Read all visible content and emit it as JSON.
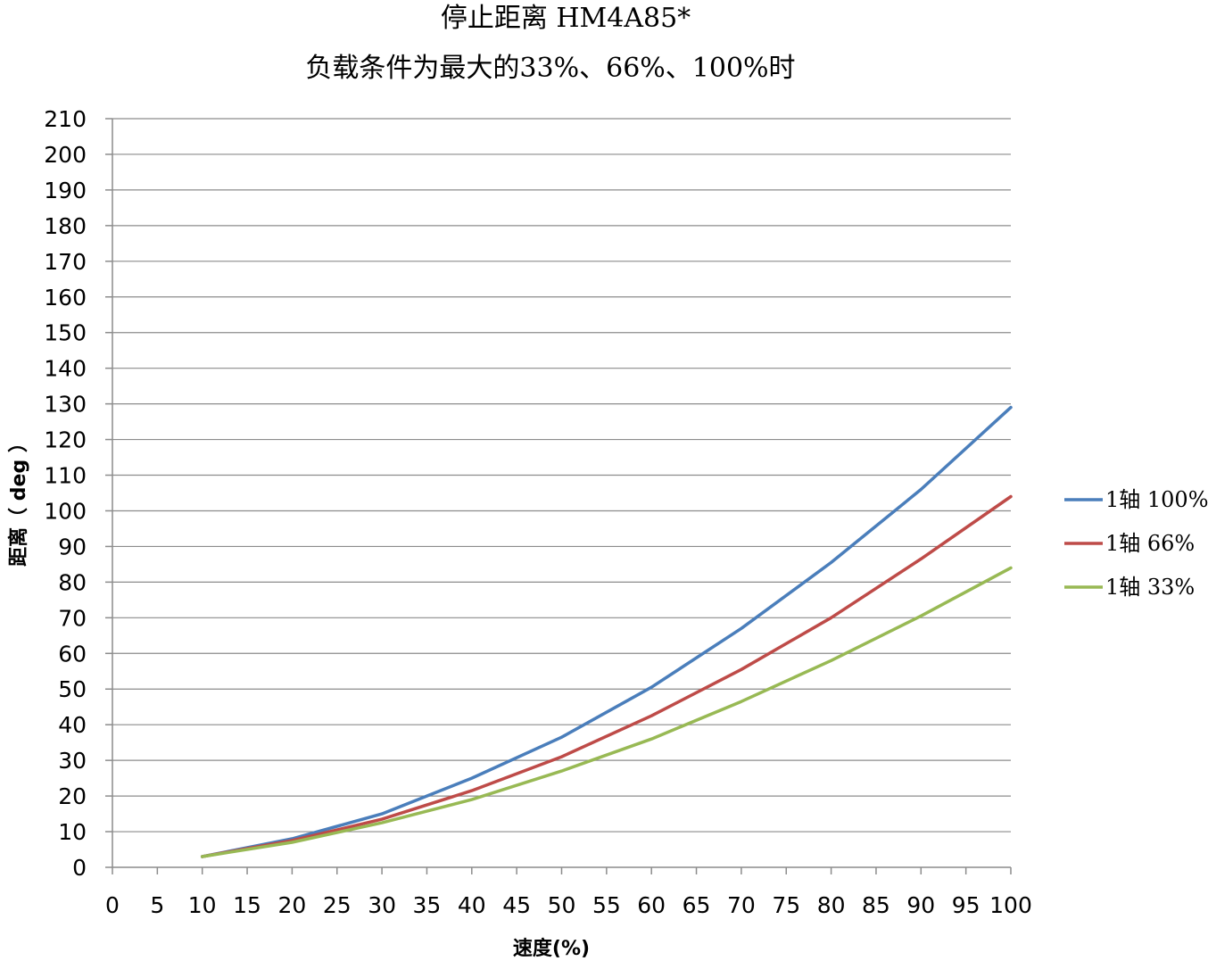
{
  "chart_data": {
    "type": "line",
    "title": "停止距离 HM4A85*",
    "subtitle": "负载条件为最大的33%、66%、100%时",
    "xlabel": "速度(%)",
    "ylabel": "距离（ deg ）",
    "xlim": [
      0,
      100
    ],
    "ylim": [
      0,
      210
    ],
    "x_ticks": [
      0,
      5,
      10,
      15,
      20,
      25,
      30,
      35,
      40,
      45,
      50,
      55,
      60,
      65,
      70,
      75,
      80,
      85,
      90,
      95,
      100
    ],
    "y_ticks": [
      0,
      10,
      20,
      30,
      40,
      50,
      60,
      70,
      80,
      90,
      100,
      110,
      120,
      130,
      140,
      150,
      160,
      170,
      180,
      190,
      200,
      210
    ],
    "x": [
      10,
      20,
      30,
      40,
      50,
      60,
      70,
      80,
      90,
      100
    ],
    "grid": true,
    "legend_position": "right",
    "series": [
      {
        "name": "1轴 100%",
        "color": "#4a7ebb",
        "values": [
          3,
          8,
          15,
          25,
          36.5,
          50.5,
          67,
          85.5,
          106,
          129
        ]
      },
      {
        "name": "1轴 66%",
        "color": "#be4b48",
        "values": [
          3,
          7.5,
          13.5,
          21.5,
          31,
          42.5,
          55.5,
          70,
          86.5,
          104
        ]
      },
      {
        "name": "1轴 33%",
        "color": "#98b954",
        "values": [
          3,
          7,
          12.5,
          19,
          27,
          36,
          46.5,
          58,
          70.5,
          84
        ]
      }
    ]
  }
}
